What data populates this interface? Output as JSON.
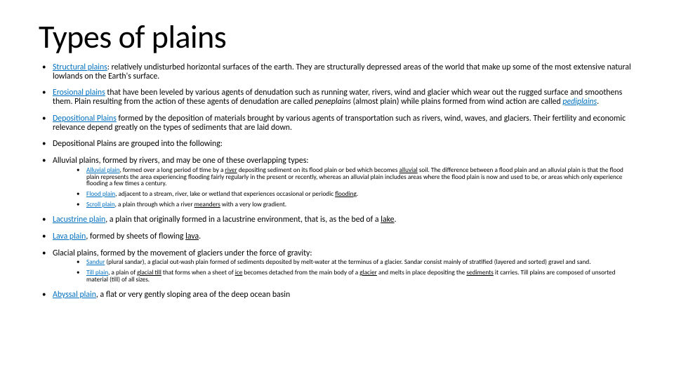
{
  "title": "Types of plains",
  "colors": {
    "link": "#0070c0",
    "text": "#000000",
    "bg": "#ffffff"
  },
  "fontsize": {
    "title": 46,
    "body": 11.8,
    "sub": 9.2
  },
  "b1": {
    "link": "Structural plains",
    "rest": ": relatively undisturbed horizontal surfaces of the earth. They are structurally depressed areas of the world that make up some of the most extensive natural lowlands on the Earth's surface."
  },
  "b2": {
    "link": "Erosional plains",
    "mid": " that have been leveled by various agents of denudation such as running water, rivers, wind and glacier which wear out the rugged surface and smoothens them. Plain resulting from the action of these agents of denudation are called ",
    "peneplains": "peneplains",
    "mid2": " (almost plain) while plains formed from wind action are called ",
    "pediplains": "pediplains",
    "end": "."
  },
  "b3": {
    "link": "Depositional Plains",
    "rest": " formed by the deposition of materials brought by various agents of transportation such as rivers, wind, waves, and glaciers. Their fertility and economic relevance depend greatly on the types of sediments that are laid down."
  },
  "b4": {
    "text": "Depositional Plains are grouped into the following:"
  },
  "b5": {
    "lead": "Alluvial plains",
    "rest": ", formed by rivers, and may be one of these overlapping types:"
  },
  "b5s1": {
    "link": "Alluvial plain",
    "t1": ", formed over a long period of time by a ",
    "river": "river",
    "t2": " depositing sediment on its flood plain or bed which becomes ",
    "alluvial": "alluvial",
    "t3": " soil. The difference between a flood plain and an alluvial plain is that the flood plain represents the area experiencing flooding fairly regularly in the present or recently, whereas an alluvial plain includes areas where the flood plain is now and used to be, or areas which only experience flooding a few times a century."
  },
  "b5s2": {
    "link": "Flood plain",
    "t1": ", adjacent to a stream, river, lake or wetland that experiences occasional or periodic ",
    "flooding": "flooding",
    "end": "."
  },
  "b5s3": {
    "link": "Scroll plain",
    "t1": ", a plain through which a river ",
    "meanders": "meanders",
    "t2": " with a very low gradient."
  },
  "b6": {
    "link": "Lacustrine plain",
    "t1": ", a plain that originally formed in a lacustrine environment, that is, as the bed of a ",
    "lake": "lake",
    "end": "."
  },
  "b7": {
    "link": "Lava plain",
    "t1": ", formed by sheets of flowing ",
    "lava": "lava",
    "end": "."
  },
  "b8": {
    "lead": "Glacial plains",
    "rest": ", formed by the movement of glaciers under the force of gravity:"
  },
  "b8s1": {
    "link": "Sandur",
    "t1": " (plural sandar), a glacial out-wash plain formed of sediments deposited by melt-water at the terminus of a glacier. Sandar consist mainly of stratified (layered and sorted) gravel and sand."
  },
  "b8s2": {
    "link": "Till plain",
    "t1": ", a plain of ",
    "glacialtill": "glacial till",
    "t2": " that forms when a sheet of ",
    "ice": "ice",
    "t3": " becomes detached from the main body of a ",
    "glacier": "glacier",
    "t4": " and melts in place depositing the ",
    "sediments": "sediments",
    "t5": " it carries. Till plains are composed of unsorted material (till) of all sizes."
  },
  "b9": {
    "link": "Abyssal plain",
    "rest": ", a flat or very gently sloping area of the deep ocean basin"
  }
}
